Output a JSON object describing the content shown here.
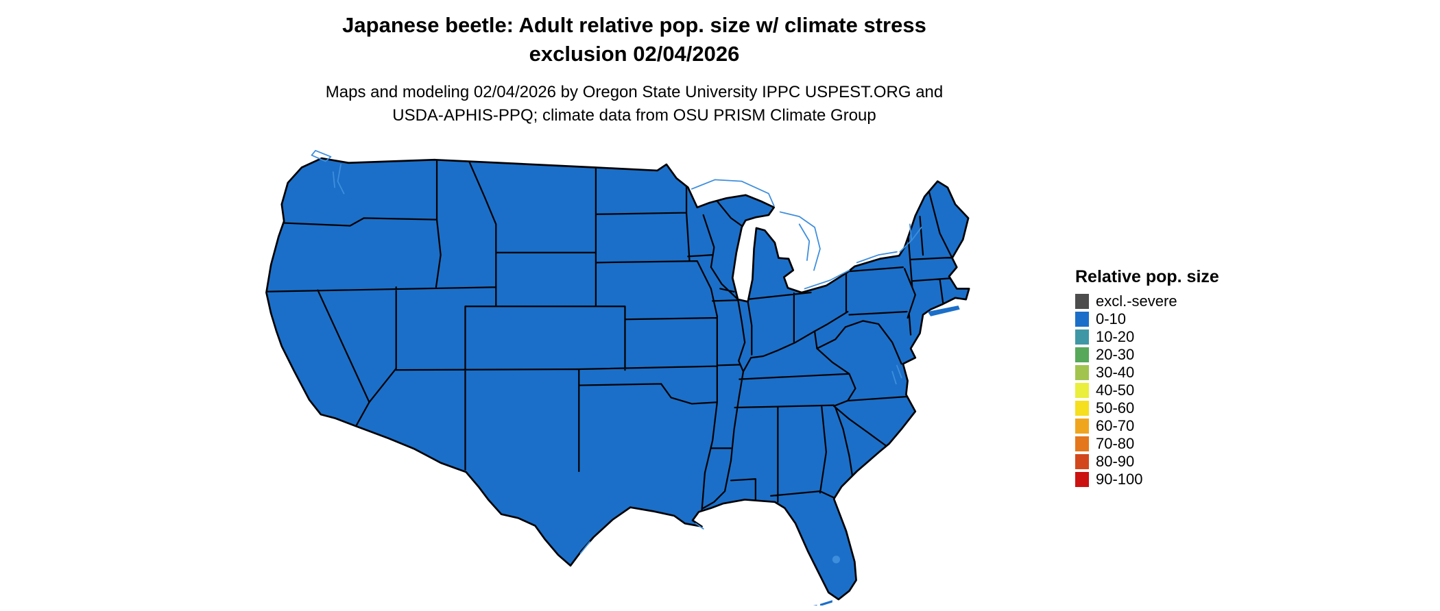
{
  "title": {
    "line1": "Japanese beetle: Adult relative pop. size w/ climate stress",
    "line2": "exclusion 02/04/2026"
  },
  "subtitle": {
    "line1": "Maps and modeling 02/04/2026 by Oregon State University IPPC USPEST.ORG and",
    "line2": "USDA-APHIS-PPQ; climate data from OSU PRISM Climate Group"
  },
  "legend": {
    "title": "Relative pop. size",
    "entries": [
      {
        "label": "excl.-severe",
        "color": "#4d4d4d"
      },
      {
        "label": "0-10",
        "color": "#1b6fc8"
      },
      {
        "label": "10-20",
        "color": "#3f97a5"
      },
      {
        "label": "20-30",
        "color": "#57a85a"
      },
      {
        "label": "30-40",
        "color": "#a2c44e"
      },
      {
        "label": "40-50",
        "color": "#eaee3c"
      },
      {
        "label": "50-60",
        "color": "#f5df1e"
      },
      {
        "label": "60-70",
        "color": "#f0a51f"
      },
      {
        "label": "70-80",
        "color": "#e4771b"
      },
      {
        "label": "80-90",
        "color": "#d2481c"
      },
      {
        "label": "90-100",
        "color": "#cc1111"
      }
    ]
  },
  "map": {
    "region_label": "Continental United States choropleth",
    "fill_category": "0-10",
    "fill_color": "#1b6fc8",
    "border_color": "#000000",
    "water_color": "#3e8edd"
  }
}
